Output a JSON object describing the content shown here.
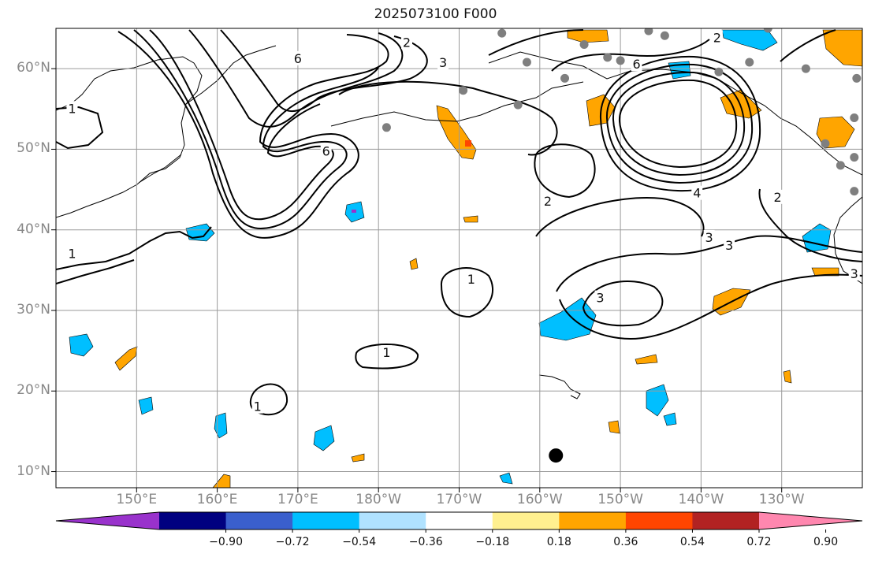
{
  "title": "2025073100 F000",
  "map": {
    "projection": "plate-carree",
    "lon_range": [
      140,
      240
    ],
    "lat_range": [
      8,
      65
    ],
    "lat_ticks": [
      {
        "value": 10,
        "label": "10°N"
      },
      {
        "value": 20,
        "label": "20°N"
      },
      {
        "value": 30,
        "label": "30°N"
      },
      {
        "value": 40,
        "label": "40°N"
      },
      {
        "value": 50,
        "label": "50°N"
      },
      {
        "value": 60,
        "label": "60°N"
      }
    ],
    "lon_ticks": [
      {
        "value": 150,
        "label": "150°E"
      },
      {
        "value": 160,
        "label": "160°E"
      },
      {
        "value": 170,
        "label": "170°E"
      },
      {
        "value": 180,
        "label": "180°W"
      },
      {
        "value": 190,
        "label": "170°W"
      },
      {
        "value": 200,
        "label": "160°W"
      },
      {
        "value": 210,
        "label": "150°W"
      },
      {
        "value": 220,
        "label": "140°W"
      },
      {
        "value": 230,
        "label": "130°W"
      }
    ],
    "gridlines": true,
    "contour_labels": [
      "1",
      "2",
      "3",
      "4",
      "6"
    ],
    "contour_label_positions": [
      {
        "lon": 142,
        "lat": 55,
        "text": "1"
      },
      {
        "lon": 142,
        "lat": 37,
        "text": "1"
      },
      {
        "lon": 173.5,
        "lat": 49.7,
        "text": "6"
      },
      {
        "lon": 170,
        "lat": 61.2,
        "text": "6"
      },
      {
        "lon": 183.5,
        "lat": 63.2,
        "text": "2"
      },
      {
        "lon": 188,
        "lat": 60.7,
        "text": "3"
      },
      {
        "lon": 191.5,
        "lat": 33.8,
        "text": "1"
      },
      {
        "lon": 181,
        "lat": 24.7,
        "text": "1"
      },
      {
        "lon": 165,
        "lat": 18,
        "text": "1"
      },
      {
        "lon": 201,
        "lat": 43.5,
        "text": "2"
      },
      {
        "lon": 207.5,
        "lat": 31.5,
        "text": "3"
      },
      {
        "lon": 212,
        "lat": 60.5,
        "text": "6"
      },
      {
        "lon": 219.5,
        "lat": 44.5,
        "text": "4"
      },
      {
        "lon": 221,
        "lat": 39,
        "text": "3"
      },
      {
        "lon": 223.5,
        "lat": 38,
        "text": "3"
      },
      {
        "lon": 229.5,
        "lat": 44,
        "text": "2"
      },
      {
        "lon": 239,
        "lat": 34.5,
        "text": "3"
      },
      {
        "lon": 222,
        "lat": 63.8,
        "text": "2"
      }
    ],
    "stations": [
      {
        "lon": 202,
        "lat": 12,
        "size": "large",
        "color": "#000000"
      },
      {
        "lon": 181,
        "lat": 52.7,
        "size": "small",
        "color": "#7f7f7f"
      },
      {
        "lon": 190.5,
        "lat": 57.3,
        "size": "small",
        "color": "#7f7f7f"
      },
      {
        "lon": 195.3,
        "lat": 64.4,
        "size": "small",
        "color": "#7f7f7f"
      },
      {
        "lon": 197.3,
        "lat": 55.5,
        "size": "small",
        "color": "#7f7f7f"
      },
      {
        "lon": 198.4,
        "lat": 60.8,
        "size": "small",
        "color": "#7f7f7f"
      },
      {
        "lon": 203.1,
        "lat": 58.8,
        "size": "small",
        "color": "#7f7f7f"
      },
      {
        "lon": 205.5,
        "lat": 63,
        "size": "small",
        "color": "#7f7f7f"
      },
      {
        "lon": 208.4,
        "lat": 61.4,
        "size": "small",
        "color": "#7f7f7f"
      },
      {
        "lon": 210,
        "lat": 61,
        "size": "small",
        "color": "#7f7f7f"
      },
      {
        "lon": 213.5,
        "lat": 64.7,
        "size": "small",
        "color": "#7f7f7f"
      },
      {
        "lon": 215.5,
        "lat": 64.1,
        "size": "small",
        "color": "#7f7f7f"
      },
      {
        "lon": 222.2,
        "lat": 59.6,
        "size": "small",
        "color": "#7f7f7f"
      },
      {
        "lon": 226,
        "lat": 60.8,
        "size": "small",
        "color": "#7f7f7f"
      },
      {
        "lon": 228.3,
        "lat": 65,
        "size": "small",
        "color": "#7f7f7f"
      },
      {
        "lon": 233,
        "lat": 60,
        "size": "small",
        "color": "#7f7f7f"
      },
      {
        "lon": 235.4,
        "lat": 50.7,
        "size": "small",
        "color": "#7f7f7f"
      },
      {
        "lon": 237.3,
        "lat": 48,
        "size": "small",
        "color": "#7f7f7f"
      },
      {
        "lon": 239,
        "lat": 49,
        "size": "small",
        "color": "#7f7f7f"
      },
      {
        "lon": 239,
        "lat": 44.8,
        "size": "small",
        "color": "#7f7f7f"
      },
      {
        "lon": 239,
        "lat": 53.9,
        "size": "small",
        "color": "#7f7f7f"
      },
      {
        "lon": 239.3,
        "lat": 58.8,
        "size": "small",
        "color": "#7f7f7f"
      }
    ]
  },
  "colorbar": {
    "orientation": "horizontal",
    "extend": "both",
    "colors": [
      "#9932cc",
      "#000080",
      "#3a5fcd",
      "#00bfff",
      "#b0e2ff",
      "#ffffff",
      "#fff08f",
      "#ffa500",
      "#ff4500",
      "#b22222",
      "#ff87af"
    ],
    "ticks": [
      {
        "value": -0.9,
        "label": "−0.90"
      },
      {
        "value": -0.72,
        "label": "−0.72"
      },
      {
        "value": -0.54,
        "label": "−0.54"
      },
      {
        "value": -0.36,
        "label": "−0.36"
      },
      {
        "value": -0.18,
        "label": "−0.18"
      },
      {
        "value": 0.18,
        "label": "0.18"
      },
      {
        "value": 0.36,
        "label": "0.36"
      },
      {
        "value": 0.54,
        "label": "0.54"
      },
      {
        "value": 0.72,
        "label": "0.72"
      },
      {
        "value": 0.9,
        "label": "0.90"
      }
    ]
  }
}
